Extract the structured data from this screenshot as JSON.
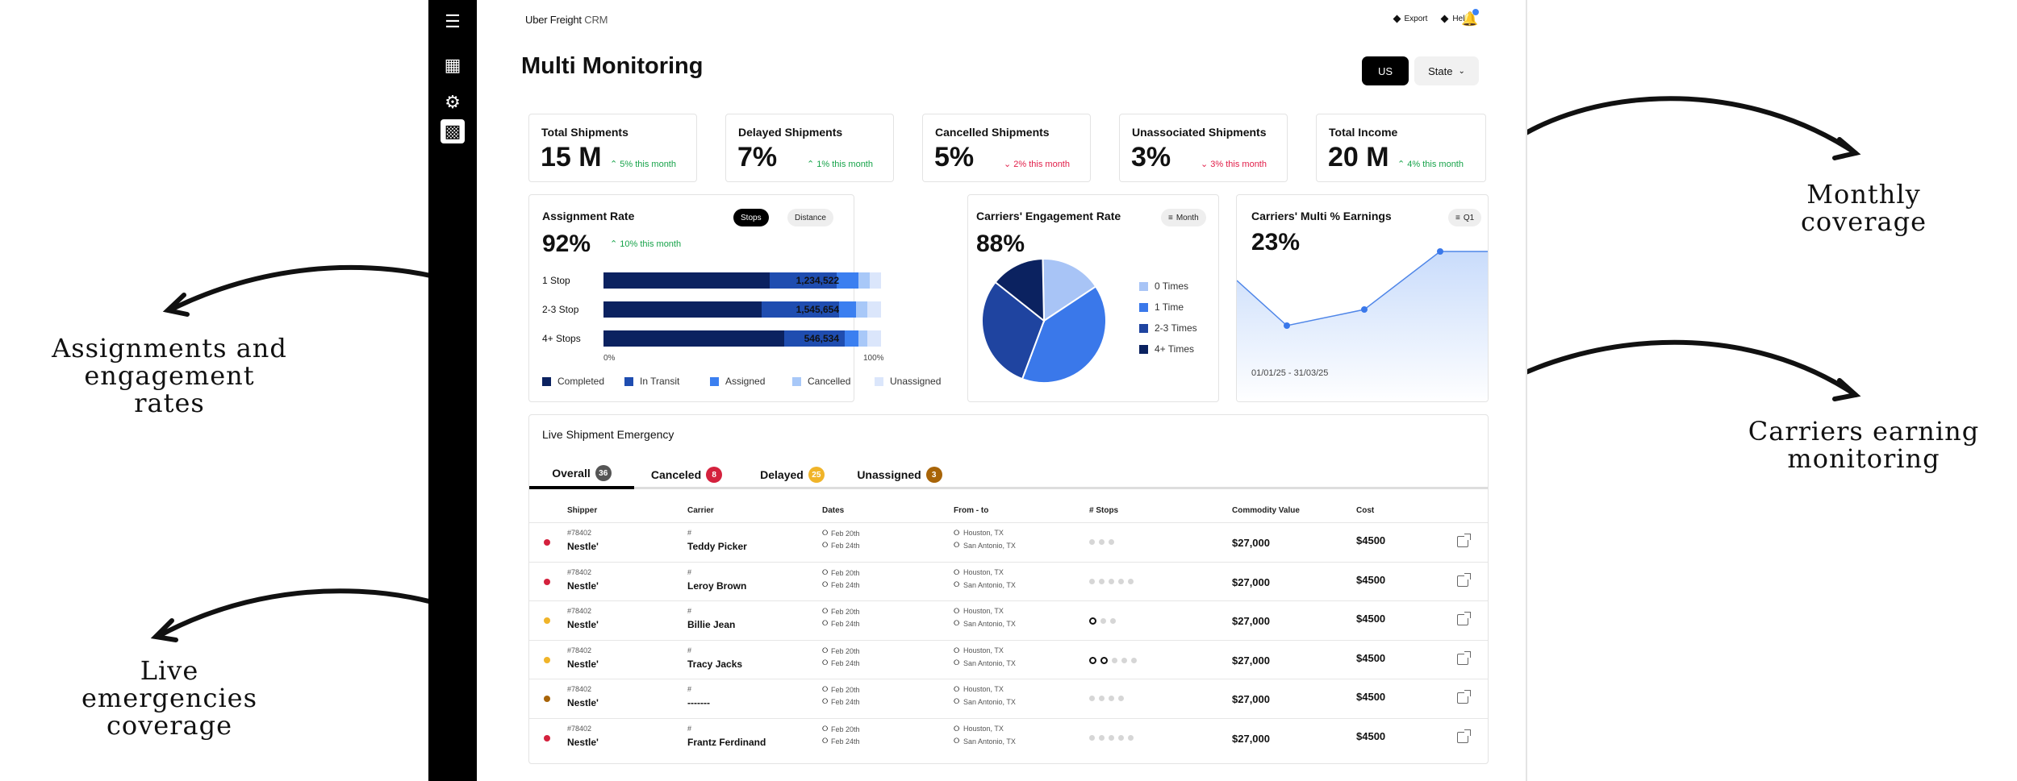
{
  "annotations": {
    "monthly": "Monthly coverage",
    "assign": [
      "Assignments and",
      "engagement rates"
    ],
    "earning": [
      "Carriers earning",
      "monitoring"
    ],
    "live": [
      "Live emergencies",
      "coverage"
    ]
  },
  "header": {
    "brand": "Uber Freight",
    "crm": "CRM",
    "export": "Export",
    "help": "Help",
    "title": "Multi Monitoring",
    "us": "US",
    "state": "State"
  },
  "kpis": [
    {
      "label": "Total Shipments",
      "value": "15 M",
      "trend": "5% this month",
      "dir": "up"
    },
    {
      "label": "Delayed Shipments",
      "value": "7%",
      "trend": "1% this month",
      "dir": "up"
    },
    {
      "label": "Cancelled Shipments",
      "value": "5%",
      "trend": "2% this month",
      "dir": "down"
    },
    {
      "label": "Unassociated Shipments",
      "value": "3%",
      "trend": "3% this month",
      "dir": "down"
    },
    {
      "label": "Total Income",
      "value": "20 M",
      "trend": "4% this month",
      "dir": "up"
    }
  ],
  "assignment": {
    "title": "Assignment Rate",
    "value": "92%",
    "trend": "10% this month",
    "toggle": [
      "Stops",
      "Distance"
    ],
    "axis_start": "0%",
    "axis_end": "100%",
    "legend": [
      "Completed",
      "In Transit",
      "Assigned",
      "Cancelled",
      "Unassigned"
    ],
    "colors": [
      "#0b2260",
      "#1f4db0",
      "#3b7ff0",
      "#a8c8f8",
      "#dbe6fb"
    ],
    "rows": [
      {
        "label": "1 Stop",
        "total": "1,234,522",
        "segments": [
          60,
          24,
          8,
          4,
          4
        ]
      },
      {
        "label": "2-3 Stop",
        "total": "1,545,654",
        "segments": [
          57,
          28,
          6,
          4,
          5
        ]
      },
      {
        "label": "4+ Stops",
        "total": "546,534",
        "segments": [
          65,
          22,
          5,
          3,
          5
        ]
      }
    ]
  },
  "engagement": {
    "title": "Carriers' Engagement Rate",
    "value": "88%",
    "filter": "Month",
    "legend": [
      "0 Times",
      "1 Time",
      "2-3 Times",
      "4+ Times"
    ],
    "colors": [
      "#a8c4f6",
      "#3a78ea",
      "#1f44a0",
      "#0b2260"
    ],
    "values": [
      16,
      40,
      30,
      14
    ]
  },
  "earnings": {
    "title": "Carriers' Multi % Earnings",
    "value": "23%",
    "filter": "Q1",
    "range": "01/01/25 - 31/03/25",
    "points": [
      0.36,
      0.22,
      0.27,
      0.45,
      0.45
    ]
  },
  "live": {
    "title": "Live Shipment Emergency",
    "tabs": [
      {
        "label": "Overall",
        "count": "36",
        "color": "#555"
      },
      {
        "label": "Canceled",
        "count": "8",
        "color": "#d4213d"
      },
      {
        "label": "Delayed",
        "count": "25",
        "color": "#f0b429"
      },
      {
        "label": "Unassigned",
        "count": "3",
        "color": "#a86408"
      }
    ],
    "columns": [
      "Shipper",
      "Carrier",
      "Dates",
      "From - to",
      "# Stops",
      "Commodity Value",
      "Cost"
    ],
    "rows": [
      {
        "status": "#d4213d",
        "id": "#78402",
        "shipper": "Nestle'",
        "hash": "#",
        "carrier": "Teddy Picker",
        "d1": "Feb 20th",
        "d2": "Feb 24th",
        "from": "Houston, TX",
        "to": "San Antonio, TX",
        "stops": 3,
        "done": 0,
        "value": "$27,000",
        "cost": "$4500"
      },
      {
        "status": "#d4213d",
        "id": "#78402",
        "shipper": "Nestle'",
        "hash": "#",
        "carrier": "Leroy Brown",
        "d1": "Feb 20th",
        "d2": "Feb 24th",
        "from": "Houston, TX",
        "to": "San Antonio, TX",
        "stops": 5,
        "done": 0,
        "value": "$27,000",
        "cost": "$4500"
      },
      {
        "status": "#f0b429",
        "id": "#78402",
        "shipper": "Nestle'",
        "hash": "#",
        "carrier": "Billie Jean",
        "d1": "Feb 20th",
        "d2": "Feb 24th",
        "from": "Houston, TX",
        "to": "San Antonio, TX",
        "stops": 3,
        "done": 1,
        "value": "$27,000",
        "cost": "$4500"
      },
      {
        "status": "#f0b429",
        "id": "#78402",
        "shipper": "Nestle'",
        "hash": "#",
        "carrier": "Tracy Jacks",
        "d1": "Feb 20th",
        "d2": "Feb 24th",
        "from": "Houston, TX",
        "to": "San Antonio, TX",
        "stops": 5,
        "done": 2,
        "value": "$27,000",
        "cost": "$4500"
      },
      {
        "status": "#a86408",
        "id": "#78402",
        "shipper": "Nestle'",
        "hash": "#",
        "carrier": "-------",
        "d1": "Feb 20th",
        "d2": "Feb 24th",
        "from": "Houston, TX",
        "to": "San Antonio, TX",
        "stops": 4,
        "done": 0,
        "value": "$27,000",
        "cost": "$4500"
      },
      {
        "status": "#d4213d",
        "id": "#78402",
        "shipper": "Nestle'",
        "hash": "#",
        "carrier": "Frantz Ferdinand",
        "d1": "Feb 20th",
        "d2": "Feb 24th",
        "from": "Houston, TX",
        "to": "San Antonio, TX",
        "stops": 5,
        "done": 0,
        "value": "$27,000",
        "cost": "$4500"
      }
    ]
  }
}
